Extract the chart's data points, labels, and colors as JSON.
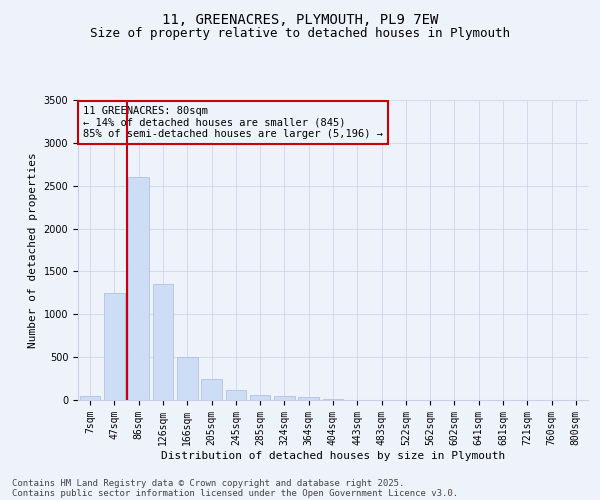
{
  "title_line1": "11, GREENACRES, PLYMOUTH, PL9 7EW",
  "title_line2": "Size of property relative to detached houses in Plymouth",
  "xlabel": "Distribution of detached houses by size in Plymouth",
  "ylabel": "Number of detached properties",
  "categories": [
    "7sqm",
    "47sqm",
    "86sqm",
    "126sqm",
    "166sqm",
    "205sqm",
    "245sqm",
    "285sqm",
    "324sqm",
    "364sqm",
    "404sqm",
    "443sqm",
    "483sqm",
    "522sqm",
    "562sqm",
    "602sqm",
    "641sqm",
    "681sqm",
    "721sqm",
    "760sqm",
    "800sqm"
  ],
  "values": [
    50,
    1250,
    2600,
    1350,
    500,
    240,
    115,
    55,
    45,
    30,
    10,
    5,
    5,
    0,
    0,
    0,
    0,
    0,
    0,
    0,
    0
  ],
  "bar_color": "#ccddf5",
  "bar_edgecolor": "#aabbd8",
  "vline_xindex": 2,
  "vline_color": "#cc0000",
  "ylim": [
    0,
    3500
  ],
  "yticks": [
    0,
    500,
    1000,
    1500,
    2000,
    2500,
    3000,
    3500
  ],
  "annotation_text": "11 GREENACRES: 80sqm\n← 14% of detached houses are smaller (845)\n85% of semi-detached houses are larger (5,196) →",
  "annotation_box_edgecolor": "#cc0000",
  "background_color": "#eef2fb",
  "grid_color": "#c8d0e8",
  "footnote1": "Contains HM Land Registry data © Crown copyright and database right 2025.",
  "footnote2": "Contains public sector information licensed under the Open Government Licence v3.0.",
  "title_fontsize": 10,
  "subtitle_fontsize": 9,
  "axis_label_fontsize": 8,
  "tick_fontsize": 7,
  "annotation_fontsize": 7.5,
  "footnote_fontsize": 6.5
}
